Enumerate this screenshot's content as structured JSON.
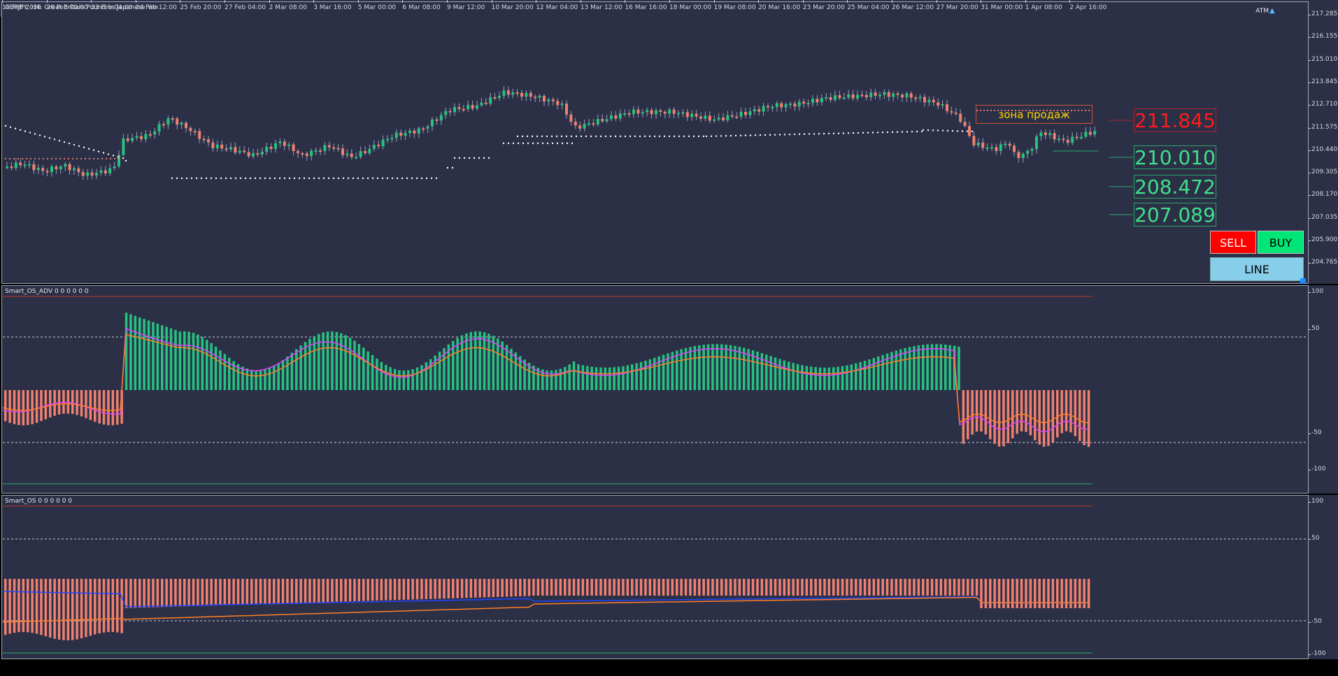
{
  "main_title": "GBPJPY, H4:  Great Britain Pound vs Japanese Yen",
  "atm_label": "ATM",
  "atm_icon": "hat-icon",
  "price_axis": [
    "217.285",
    "216.155",
    "215.010",
    "213.845",
    "212.710",
    "211.575",
    "210.440",
    "209.305",
    "208.170",
    "207.035",
    "205.900",
    "204.765"
  ],
  "ind1": {
    "title": "Smart_OS_ADV 0 0 0 0 0 0",
    "axis": [
      "100",
      "50",
      "-50",
      "-100"
    ]
  },
  "ind2": {
    "title": "Smart_OS 0 0 0 0 0 0",
    "axis": [
      "100",
      "50",
      "-50",
      "-100"
    ]
  },
  "time_axis": [
    "18 Feb 2026",
    "20 Feb 00:00",
    "23 Feb 04:00",
    "24 Feb 12:00",
    "25 Feb 20:00",
    "27 Feb 04:00",
    "2 Mar 08:00",
    "3 Mar 16:00",
    "5 Mar 00:00",
    "6 Mar 08:00",
    "9 Mar 12:00",
    "10 Mar 20:00",
    "12 Mar 04:00",
    "13 Mar 12:00",
    "16 Mar 16:00",
    "18 Mar 00:00",
    "19 Mar 08:00",
    "20 Mar 16:00",
    "23 Mar 20:00",
    "25 Mar 04:00",
    "26 Mar 12:00",
    "27 Mar 20:00",
    "31 Mar 00:00",
    "1 Apr 08:00",
    "2 Apr 16:00"
  ],
  "levels": [
    "211.845",
    "210.010",
    "208.472",
    "207.089"
  ],
  "zone_label": "зона продаж",
  "buttons": {
    "sell": "SELL",
    "buy": "BUY",
    "line": "LINE"
  },
  "colors": {
    "background": "#2b3047",
    "bull": "#26c281",
    "bear": "#f08070",
    "sell": "#ff0000",
    "buy": "#00e676",
    "line_btn": "#87ceeb"
  }
}
